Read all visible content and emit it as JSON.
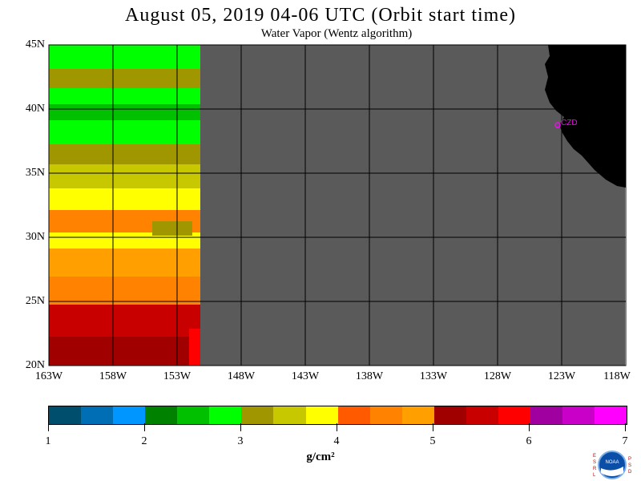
{
  "header": {
    "title": "August 05, 2019  04-06 UTC  (Orbit start time)",
    "subtitle": "Water Vapor (Wentz algorithm)"
  },
  "map": {
    "lat_labels": [
      "45N",
      "40N",
      "35N",
      "30N",
      "25N",
      "20N"
    ],
    "lon_labels": [
      "163W",
      "158W",
      "153W",
      "148W",
      "143W",
      "138W",
      "133W",
      "128W",
      "123W",
      "118W"
    ],
    "station_label": "CZD",
    "colors": {
      "missing": "#5a5a5a",
      "land": "#000000",
      "grid": "#000000",
      "station": "#ff00ff"
    }
  },
  "colorbar": {
    "unit": "g/cm²",
    "tick_labels": [
      "1",
      "2",
      "3",
      "4",
      "5",
      "6",
      "7"
    ],
    "colors": [
      "#004e6e",
      "#006eb4",
      "#0096ff",
      "#008200",
      "#00c000",
      "#00ff00",
      "#a09600",
      "#c8c800",
      "#ffff00",
      "#ff5a00",
      "#ff8200",
      "#ffa000",
      "#a00000",
      "#c80000",
      "#ff0000",
      "#a000a0",
      "#c800c8",
      "#ff00ff"
    ]
  },
  "logo": {
    "left_letters": "ESRL",
    "right_letters": "PSD",
    "center": "NOAA"
  }
}
